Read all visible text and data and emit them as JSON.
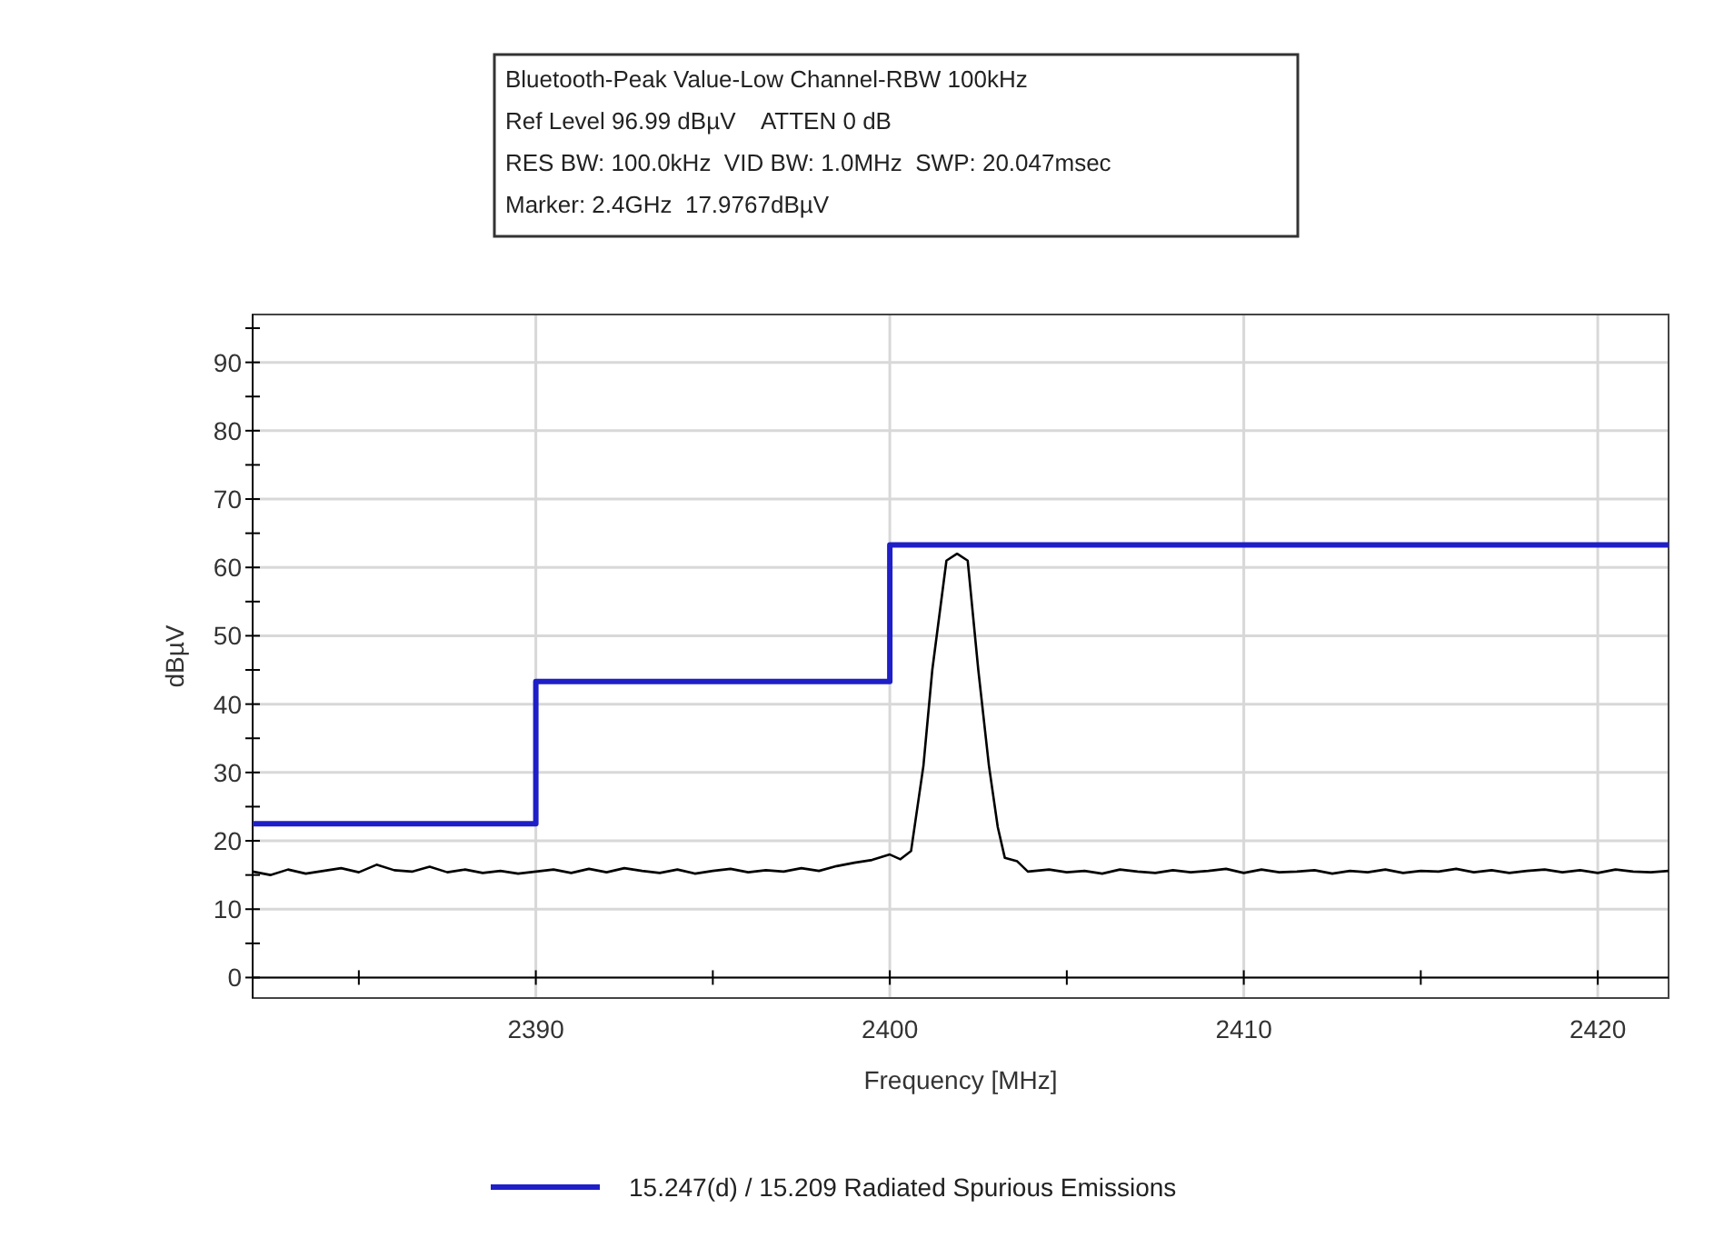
{
  "chart_data": {
    "type": "line",
    "title": "Bluetooth-Peak Value-Low Channel-RBW 100kHz",
    "annotations": [
      "Ref Level 96.99 dBµV    ATTEN 0 dB",
      "RES BW: 100.0kHz  VID BW: 1.0MHz  SWP: 20.047msec",
      "Marker: 2.4GHz  17.9767dBµV"
    ],
    "xlabel": "Frequency [MHz]",
    "ylabel": "dBµV",
    "xlim": [
      2382,
      2422
    ],
    "ylim": [
      -3,
      97
    ],
    "xticks": [
      {
        "value": 2385,
        "label": null
      },
      2390,
      {
        "value": 2395,
        "label": null
      },
      2400,
      {
        "value": 2405,
        "label": null
      },
      2410,
      {
        "value": 2415,
        "label": null
      },
      2420
    ],
    "yticks": [
      0,
      {
        "value": 5,
        "label": null
      },
      10,
      {
        "value": 15,
        "label": null
      },
      20,
      {
        "value": 25,
        "label": null
      },
      30,
      {
        "value": 35,
        "label": null
      },
      40,
      {
        "value": 45,
        "label": null
      },
      50,
      {
        "value": 55,
        "label": null
      },
      60,
      {
        "value": 65,
        "label": null
      },
      70,
      {
        "value": 75,
        "label": null
      },
      80,
      {
        "value": 85,
        "label": null
      },
      90,
      {
        "value": 95,
        "label": null
      }
    ],
    "grid": true,
    "legend": "bottom",
    "series": [
      {
        "color": "#000000",
        "x": [
          2382,
          2382.5,
          2383,
          2383.5,
          2384,
          2384.5,
          2385,
          2385.5,
          2386,
          2386.5,
          2387,
          2387.5,
          2388,
          2388.5,
          2389,
          2389.5,
          2390,
          2390.5,
          2391,
          2391.5,
          2392,
          2392.5,
          2393,
          2393.5,
          2394,
          2394.5,
          2395,
          2395.5,
          2396,
          2396.5,
          2397,
          2397.5,
          2398,
          2398.5,
          2399,
          2399.5,
          2400,
          2400.3,
          2400.6,
          2400.95,
          2401.2,
          2401.6,
          2401.9,
          2402.2,
          2402.5,
          2402.8,
          2403.05,
          2403.25,
          2403.6,
          2403.9,
          2404.5,
          2405,
          2405.5,
          2406,
          2406.5,
          2407,
          2407.5,
          2408,
          2408.5,
          2409,
          2409.5,
          2410,
          2410.5,
          2411,
          2411.5,
          2412,
          2412.5,
          2413,
          2413.5,
          2414,
          2414.5,
          2415,
          2415.5,
          2416,
          2416.5,
          2417,
          2417.5,
          2418,
          2418.5,
          2419,
          2419.5,
          2420,
          2420.5,
          2421,
          2421.5,
          2422
        ],
        "values": [
          15.5,
          15,
          15.8,
          15.2,
          15.6,
          16,
          15.4,
          16.5,
          15.7,
          15.5,
          16.2,
          15.4,
          15.8,
          15.3,
          15.6,
          15.2,
          15.5,
          15.8,
          15.3,
          15.9,
          15.4,
          16,
          15.6,
          15.3,
          15.8,
          15.2,
          15.6,
          15.9,
          15.4,
          15.7,
          15.5,
          16,
          15.6,
          16.3,
          16.8,
          17.2,
          18,
          17.3,
          18.5,
          31,
          45,
          61,
          62,
          61,
          45,
          31,
          22,
          17.5,
          17,
          15.5,
          15.8,
          15.4,
          15.6,
          15.2,
          15.8,
          15.5,
          15.3,
          15.7,
          15.4,
          15.6,
          15.9,
          15.3,
          15.8,
          15.4,
          15.5,
          15.7,
          15.2,
          15.6,
          15.4,
          15.8,
          15.3,
          15.6,
          15.5,
          15.9,
          15.4,
          15.7,
          15.3,
          15.6,
          15.8,
          15.4,
          15.7,
          15.3,
          15.8,
          15.5,
          15.4,
          15.6
        ]
      },
      {
        "type": "step",
        "name": "15.247(d) / 15.209 Radiated Spurious Emissions",
        "color": "#1f1fc8",
        "x": [
          2382,
          2390,
          2400,
          2422
        ],
        "values": [
          22.5,
          43.3,
          63.3,
          63.3
        ]
      }
    ]
  }
}
